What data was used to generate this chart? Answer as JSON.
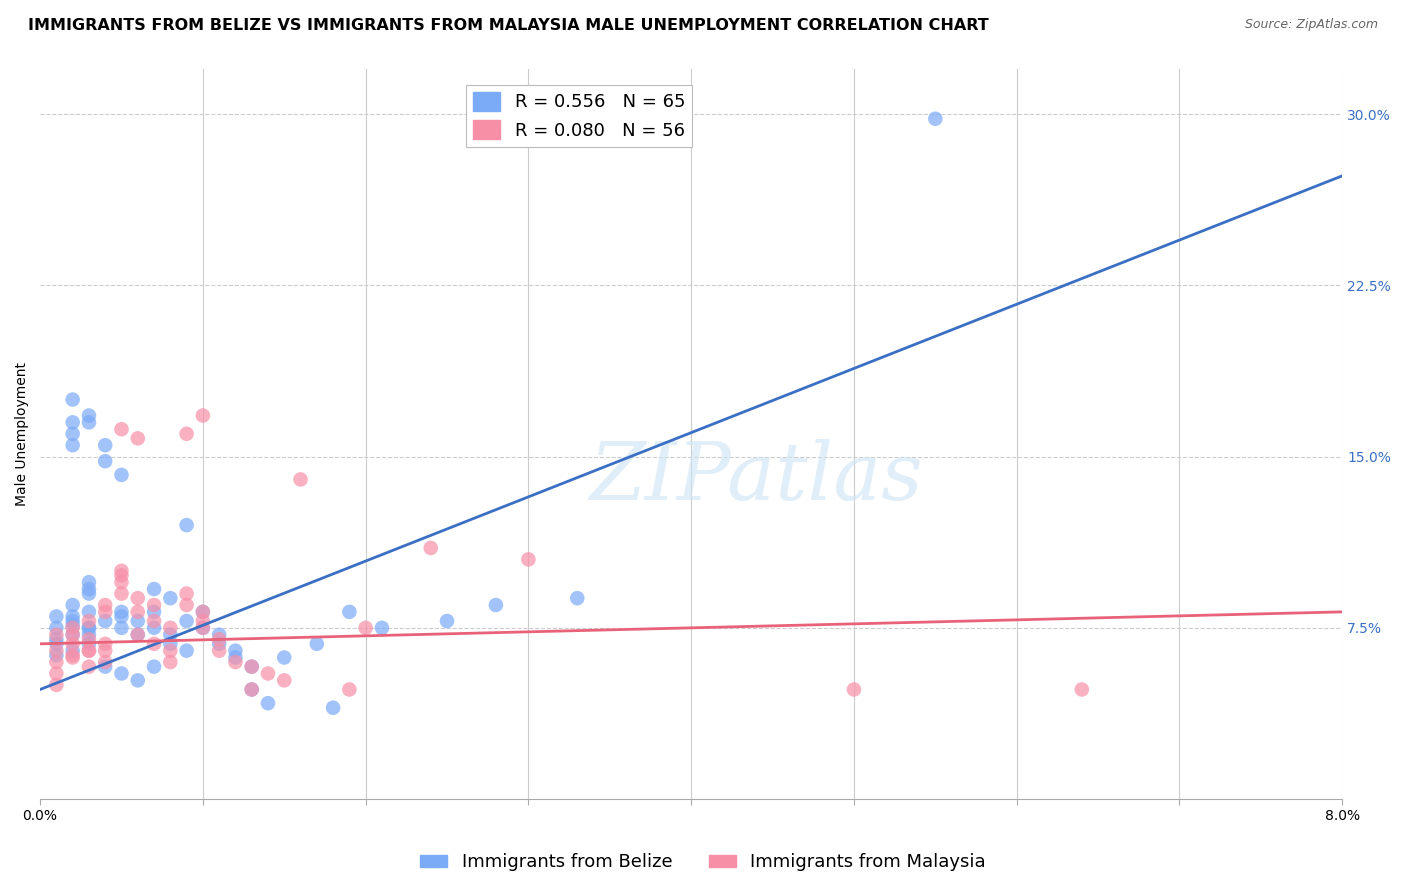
{
  "title": "IMMIGRANTS FROM BELIZE VS IMMIGRANTS FROM MALAYSIA MALE UNEMPLOYMENT CORRELATION CHART",
  "source": "Source: ZipAtlas.com",
  "ylabel": "Male Unemployment",
  "right_yticks": [
    "7.5%",
    "15.0%",
    "22.5%",
    "30.0%"
  ],
  "right_ytick_vals": [
    0.075,
    0.15,
    0.225,
    0.3
  ],
  "xmin": 0.0,
  "xmax": 0.08,
  "ymin": 0.0,
  "ymax": 0.32,
  "x_tick_vals": [
    0.0,
    0.01,
    0.02,
    0.03,
    0.04,
    0.05,
    0.06,
    0.07,
    0.08
  ],
  "legend_entries": [
    {
      "label": "R = 0.556   N = 65",
      "color": "#7baaf7"
    },
    {
      "label": "R = 0.080   N = 56",
      "color": "#f78fa7"
    }
  ],
  "scatter_belize": [
    [
      0.001,
      0.075
    ],
    [
      0.001,
      0.068
    ],
    [
      0.002,
      0.072
    ],
    [
      0.001,
      0.063
    ],
    [
      0.002,
      0.078
    ],
    [
      0.002,
      0.08
    ],
    [
      0.003,
      0.075
    ],
    [
      0.002,
      0.085
    ],
    [
      0.003,
      0.09
    ],
    [
      0.003,
      0.075
    ],
    [
      0.003,
      0.082
    ],
    [
      0.002,
      0.065
    ],
    [
      0.001,
      0.07
    ],
    [
      0.001,
      0.08
    ],
    [
      0.002,
      0.076
    ],
    [
      0.003,
      0.068
    ],
    [
      0.003,
      0.072
    ],
    [
      0.004,
      0.078
    ],
    [
      0.003,
      0.092
    ],
    [
      0.003,
      0.095
    ],
    [
      0.002,
      0.175
    ],
    [
      0.002,
      0.165
    ],
    [
      0.003,
      0.165
    ],
    [
      0.002,
      0.155
    ],
    [
      0.002,
      0.16
    ],
    [
      0.003,
      0.168
    ],
    [
      0.004,
      0.155
    ],
    [
      0.005,
      0.082
    ],
    [
      0.005,
      0.075
    ],
    [
      0.005,
      0.08
    ],
    [
      0.006,
      0.078
    ],
    [
      0.006,
      0.072
    ],
    [
      0.007,
      0.082
    ],
    [
      0.007,
      0.075
    ],
    [
      0.008,
      0.068
    ],
    [
      0.008,
      0.072
    ],
    [
      0.009,
      0.065
    ],
    [
      0.009,
      0.078
    ],
    [
      0.007,
      0.092
    ],
    [
      0.008,
      0.088
    ],
    [
      0.009,
      0.12
    ],
    [
      0.01,
      0.082
    ],
    [
      0.01,
      0.075
    ],
    [
      0.011,
      0.072
    ],
    [
      0.011,
      0.068
    ],
    [
      0.012,
      0.065
    ],
    [
      0.012,
      0.062
    ],
    [
      0.013,
      0.058
    ],
    [
      0.015,
      0.062
    ],
    [
      0.017,
      0.068
    ],
    [
      0.019,
      0.082
    ],
    [
      0.021,
      0.075
    ],
    [
      0.025,
      0.078
    ],
    [
      0.028,
      0.085
    ],
    [
      0.033,
      0.088
    ],
    [
      0.004,
      0.058
    ],
    [
      0.005,
      0.055
    ],
    [
      0.006,
      0.052
    ],
    [
      0.007,
      0.058
    ],
    [
      0.004,
      0.148
    ],
    [
      0.005,
      0.142
    ],
    [
      0.013,
      0.048
    ],
    [
      0.014,
      0.042
    ],
    [
      0.018,
      0.04
    ],
    [
      0.055,
      0.298
    ]
  ],
  "scatter_malaysia": [
    [
      0.001,
      0.065
    ],
    [
      0.001,
      0.06
    ],
    [
      0.001,
      0.055
    ],
    [
      0.001,
      0.05
    ],
    [
      0.002,
      0.072
    ],
    [
      0.002,
      0.068
    ],
    [
      0.002,
      0.062
    ],
    [
      0.002,
      0.075
    ],
    [
      0.003,
      0.078
    ],
    [
      0.003,
      0.065
    ],
    [
      0.003,
      0.07
    ],
    [
      0.003,
      0.058
    ],
    [
      0.002,
      0.063
    ],
    [
      0.001,
      0.072
    ],
    [
      0.003,
      0.065
    ],
    [
      0.004,
      0.06
    ],
    [
      0.004,
      0.065
    ],
    [
      0.004,
      0.068
    ],
    [
      0.004,
      0.082
    ],
    [
      0.004,
      0.085
    ],
    [
      0.005,
      0.09
    ],
    [
      0.005,
      0.095
    ],
    [
      0.005,
      0.1
    ],
    [
      0.005,
      0.098
    ],
    [
      0.006,
      0.088
    ],
    [
      0.006,
      0.082
    ],
    [
      0.005,
      0.162
    ],
    [
      0.006,
      0.158
    ],
    [
      0.007,
      0.085
    ],
    [
      0.007,
      0.078
    ],
    [
      0.008,
      0.075
    ],
    [
      0.006,
      0.072
    ],
    [
      0.007,
      0.068
    ],
    [
      0.008,
      0.065
    ],
    [
      0.008,
      0.06
    ],
    [
      0.009,
      0.09
    ],
    [
      0.009,
      0.085
    ],
    [
      0.01,
      0.082
    ],
    [
      0.01,
      0.078
    ],
    [
      0.01,
      0.075
    ],
    [
      0.011,
      0.07
    ],
    [
      0.011,
      0.065
    ],
    [
      0.012,
      0.06
    ],
    [
      0.013,
      0.058
    ],
    [
      0.014,
      0.055
    ],
    [
      0.015,
      0.052
    ],
    [
      0.016,
      0.14
    ],
    [
      0.02,
      0.075
    ],
    [
      0.024,
      0.11
    ],
    [
      0.03,
      0.105
    ],
    [
      0.013,
      0.048
    ],
    [
      0.019,
      0.048
    ],
    [
      0.05,
      0.048
    ],
    [
      0.064,
      0.048
    ],
    [
      0.01,
      0.168
    ],
    [
      0.009,
      0.16
    ]
  ],
  "trendline_belize": {
    "x": [
      0.0,
      0.08
    ],
    "y": [
      0.048,
      0.273
    ]
  },
  "trendline_malaysia": {
    "x": [
      0.0,
      0.08
    ],
    "y": [
      0.068,
      0.082
    ]
  },
  "belize_color": "#7baaf7",
  "malaysia_color": "#f78fa7",
  "belize_line_color": "#3a6fc4",
  "malaysia_line_color": "#e8637a",
  "watermark": "ZIPatlas",
  "grid_color": "#cccccc",
  "title_fontsize": 11.5,
  "source_fontsize": 9,
  "ylabel_fontsize": 10,
  "tick_fontsize": 10,
  "legend_fontsize": 13
}
